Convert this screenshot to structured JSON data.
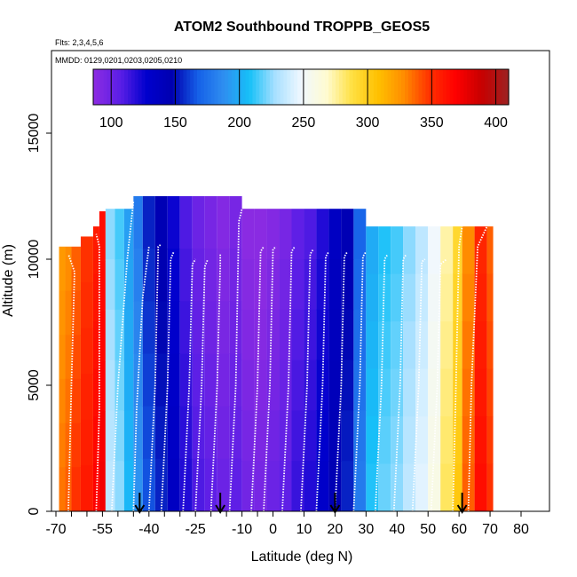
{
  "chart_data": {
    "type": "heatmap",
    "title": "ATOM2 Southbound TROPPB_GEOS5",
    "subtitle_flights": "Flts: 2,3,4,5,6",
    "subtitle_dates": "MMDD: 0129,0201,0203,0205,0210",
    "xlabel": "Latitude (deg N)",
    "ylabel": "Altitude (m)",
    "xlim": [
      -70,
      80
    ],
    "ylim": [
      0,
      18000
    ],
    "x_ticks": [
      -70,
      -55,
      -40,
      -25,
      -10,
      0,
      10,
      20,
      30,
      40,
      50,
      60,
      70,
      80
    ],
    "x_tick_labels": [
      "-70",
      "-55",
      "-40",
      "-25",
      "-10",
      "0",
      "10",
      "20",
      "30",
      "40",
      "50",
      "60",
      "70",
      "80"
    ],
    "x_minor_ticks": [
      -65,
      -60,
      -50,
      -45,
      -35,
      -30,
      -20,
      -15,
      -5
    ],
    "y_ticks": [
      0,
      5000,
      10000,
      15000
    ],
    "y_tick_labels": [
      "0",
      "5000",
      "10000",
      "15000"
    ],
    "colorbar": {
      "range": [
        86,
        410
      ],
      "ticks": [
        100,
        150,
        200,
        250,
        300,
        350,
        400
      ],
      "tick_labels": [
        "100",
        "150",
        "200",
        "250",
        "300",
        "350",
        "400"
      ],
      "colors": [
        "#8a2be2",
        "#5a1ee6",
        "#0000cd",
        "#0000b0",
        "#1560e8",
        "#2f8ef0",
        "#16c0f8",
        "#a8e0ff",
        "#f0f8ff",
        "#fffbd0",
        "#ffe040",
        "#ffc000",
        "#ff8c00",
        "#ff3000",
        "#ff0000",
        "#c80000",
        "#a02020"
      ]
    },
    "arrows_latitude": [
      -43,
      -17,
      20,
      61
    ],
    "data_columns": [
      {
        "x0": -69,
        "x1": -67,
        "top": 10500,
        "value": 330
      },
      {
        "x0": -67,
        "x1": -65,
        "top": 10500,
        "value": 335
      },
      {
        "x0": -65,
        "x1": -62,
        "top": 10500,
        "value": 345
      },
      {
        "x0": -62,
        "x1": -58,
        "top": 10900,
        "value": 355
      },
      {
        "x0": -58,
        "x1": -56,
        "top": 11300,
        "value": 365
      },
      {
        "x0": -56,
        "x1": -54,
        "top": 11900,
        "value": 370
      },
      {
        "x0": -54,
        "x1": -51,
        "top": 12000,
        "value": 230
      },
      {
        "x0": -51,
        "x1": -48,
        "top": 12000,
        "value": 220
      },
      {
        "x0": -48,
        "x1": -45,
        "top": 12000,
        "value": 200
      },
      {
        "x0": -45,
        "x1": -42,
        "top": 12500,
        "value": 185
      },
      {
        "x0": -42,
        "x1": -38,
        "top": 12500,
        "value": 160
      },
      {
        "x0": -38,
        "x1": -34,
        "top": 12500,
        "value": 150
      },
      {
        "x0": -34,
        "x1": -30,
        "top": 12500,
        "value": 130
      },
      {
        "x0": -30,
        "x1": -26,
        "top": 12500,
        "value": 115
      },
      {
        "x0": -26,
        "x1": -22,
        "top": 12500,
        "value": 105
      },
      {
        "x0": -22,
        "x1": -18,
        "top": 12500,
        "value": 100
      },
      {
        "x0": -18,
        "x1": -14,
        "top": 12500,
        "value": 95
      },
      {
        "x0": -14,
        "x1": -10,
        "top": 12500,
        "value": 100
      },
      {
        "x0": -10,
        "x1": -6,
        "top": 12000,
        "value": 92
      },
      {
        "x0": -6,
        "x1": -2,
        "top": 12000,
        "value": 90
      },
      {
        "x0": -2,
        "x1": 2,
        "top": 12000,
        "value": 95
      },
      {
        "x0": 2,
        "x1": 6,
        "top": 12000,
        "value": 100
      },
      {
        "x0": 6,
        "x1": 10,
        "top": 12000,
        "value": 110
      },
      {
        "x0": 10,
        "x1": 14,
        "top": 12000,
        "value": 115
      },
      {
        "x0": 14,
        "x1": 18,
        "top": 12000,
        "value": 125
      },
      {
        "x0": 18,
        "x1": 22,
        "top": 12000,
        "value": 140
      },
      {
        "x0": 22,
        "x1": 26,
        "top": 12000,
        "value": 150
      },
      {
        "x0": 26,
        "x1": 30,
        "top": 12000,
        "value": 175
      },
      {
        "x0": 30,
        "x1": 34,
        "top": 11300,
        "value": 205
      },
      {
        "x0": 34,
        "x1": 38,
        "top": 11300,
        "value": 215
      },
      {
        "x0": 38,
        "x1": 42,
        "top": 11300,
        "value": 220
      },
      {
        "x0": 42,
        "x1": 46,
        "top": 11300,
        "value": 230
      },
      {
        "x0": 46,
        "x1": 50,
        "top": 11300,
        "value": 240
      },
      {
        "x0": 50,
        "x1": 54,
        "top": 11300,
        "value": 255
      },
      {
        "x0": 54,
        "x1": 58,
        "top": 11300,
        "value": 280
      },
      {
        "x0": 58,
        "x1": 61,
        "top": 11300,
        "value": 300
      },
      {
        "x0": 61,
        "x1": 65,
        "top": 11300,
        "value": 335
      },
      {
        "x0": 65,
        "x1": 69,
        "top": 11300,
        "value": 360
      },
      {
        "x0": 69,
        "x1": 71,
        "top": 11300,
        "value": 345
      }
    ],
    "profiles": [
      {
        "x": [
          -66,
          -65,
          -64,
          -66
        ],
        "y": [
          0,
          5000,
          9500,
          10200
        ]
      },
      {
        "x": [
          -57,
          -56,
          -56,
          -57
        ],
        "y": [
          0,
          4000,
          10500,
          11000
        ]
      },
      {
        "x": [
          -52,
          -50,
          -47,
          -45
        ],
        "y": [
          0,
          5000,
          10000,
          12300
        ]
      },
      {
        "x": [
          -45,
          -44,
          -42,
          -40
        ],
        "y": [
          0,
          4000,
          8500,
          10500
        ]
      },
      {
        "x": [
          -40,
          -38,
          -37,
          -36
        ],
        "y": [
          0,
          5000,
          10500,
          10600
        ]
      },
      {
        "x": [
          -36,
          -34,
          -33,
          -32
        ],
        "y": [
          0,
          5000,
          10000,
          10300
        ]
      },
      {
        "x": [
          -29,
          -27,
          -26,
          -25
        ],
        "y": [
          0,
          5000,
          9800,
          10000
        ]
      },
      {
        "x": [
          -25,
          -23,
          -22,
          -21
        ],
        "y": [
          0,
          5000,
          9700,
          10000
        ]
      },
      {
        "x": [
          -20,
          -18,
          -17,
          -17
        ],
        "y": [
          0,
          5000,
          9800,
          10200
        ]
      },
      {
        "x": [
          -14,
          -12,
          -11,
          -10
        ],
        "y": [
          0,
          5000,
          11500,
          12000
        ]
      },
      {
        "x": [
          -7,
          -5,
          -4,
          -3
        ],
        "y": [
          0,
          5000,
          10300,
          10500
        ]
      },
      {
        "x": [
          -3,
          -1,
          0,
          1
        ],
        "y": [
          0,
          5000,
          10400,
          10500
        ]
      },
      {
        "x": [
          3,
          5,
          6,
          7
        ],
        "y": [
          0,
          5000,
          10300,
          10500
        ]
      },
      {
        "x": [
          9,
          11,
          12,
          13
        ],
        "y": [
          0,
          5000,
          10200,
          10400
        ]
      },
      {
        "x": [
          14,
          16,
          17,
          18
        ],
        "y": [
          0,
          5000,
          10100,
          10300
        ]
      },
      {
        "x": [
          20,
          22,
          23,
          24
        ],
        "y": [
          0,
          5000,
          10100,
          10300
        ]
      },
      {
        "x": [
          26,
          28,
          29,
          30
        ],
        "y": [
          0,
          5000,
          10100,
          10300
        ]
      },
      {
        "x": [
          33,
          35,
          36,
          37
        ],
        "y": [
          0,
          5000,
          10000,
          10200
        ]
      },
      {
        "x": [
          39,
          41,
          42,
          43
        ],
        "y": [
          0,
          5000,
          10000,
          10200
        ]
      },
      {
        "x": [
          45,
          47,
          48,
          49
        ],
        "y": [
          0,
          5000,
          9900,
          10000
        ]
      },
      {
        "x": [
          51,
          53,
          54,
          56
        ],
        "y": [
          0,
          5000,
          9800,
          10000
        ]
      },
      {
        "x": [
          58,
          59,
          60,
          61
        ],
        "y": [
          0,
          5000,
          10500,
          11300
        ]
      },
      {
        "x": [
          63,
          64,
          66,
          69
        ],
        "y": [
          0,
          5000,
          10500,
          11300
        ]
      }
    ]
  }
}
